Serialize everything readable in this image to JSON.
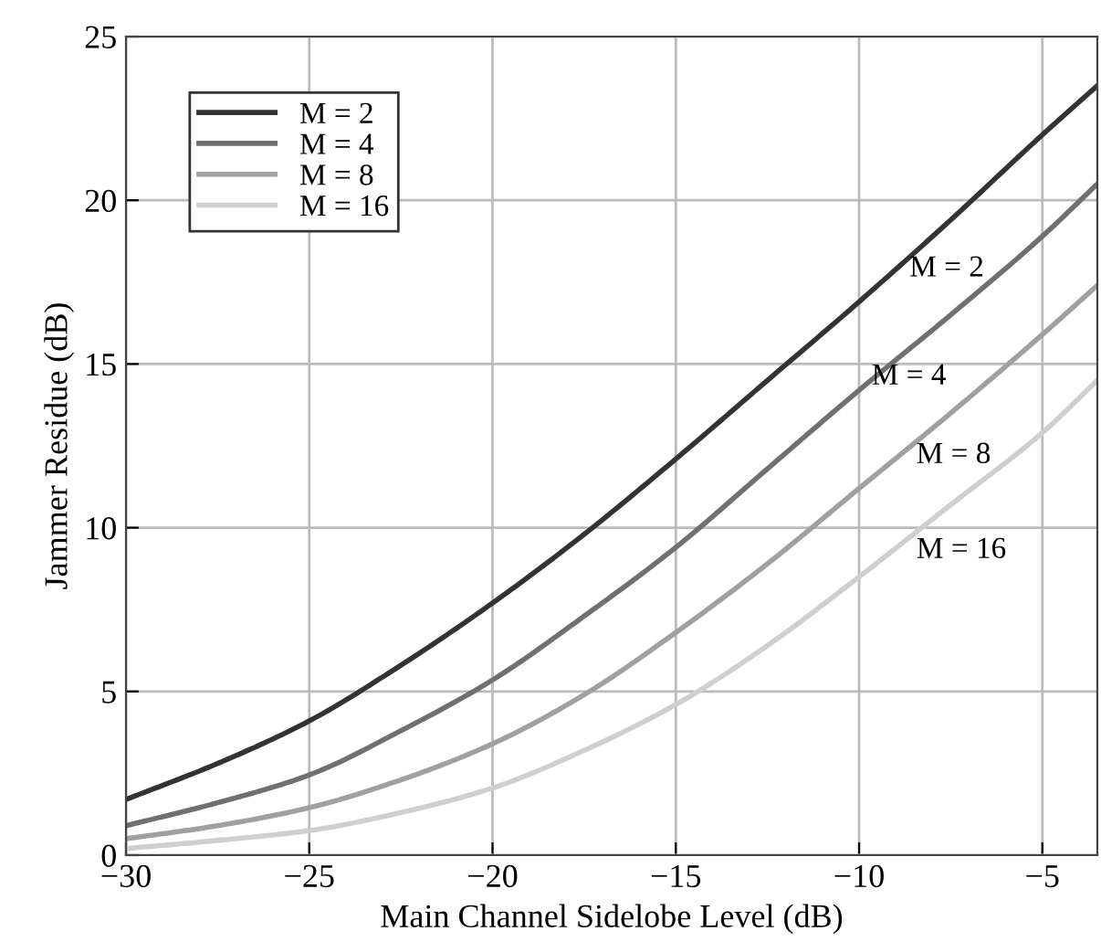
{
  "chart_data": {
    "type": "line",
    "xlabel": "Main Channel Sidelobe Level (dB)",
    "ylabel": "Jammer Residue (dB)",
    "x": [
      -30,
      -27.5,
      -25,
      -22.5,
      -20,
      -17.5,
      -15,
      -12.5,
      -10,
      -7.5,
      -5,
      -3.5
    ],
    "series": [
      {
        "name": "M = 2",
        "color": "#333333",
        "values": [
          1.7,
          2.8,
          4.1,
          5.8,
          7.7,
          9.8,
          12.1,
          14.5,
          16.9,
          19.4,
          22.0,
          23.5
        ]
      },
      {
        "name": "M = 4",
        "color": "#707070",
        "values": [
          0.9,
          1.6,
          2.45,
          3.8,
          5.35,
          7.3,
          9.4,
          11.8,
          14.2,
          16.5,
          18.9,
          20.5
        ]
      },
      {
        "name": "M = 8",
        "color": "#a0a0a0",
        "values": [
          0.5,
          0.9,
          1.45,
          2.3,
          3.4,
          4.9,
          6.8,
          8.9,
          11.2,
          13.5,
          15.9,
          17.4
        ]
      },
      {
        "name": "M = 16",
        "color": "#cfcfcf",
        "values": [
          0.2,
          0.45,
          0.75,
          1.3,
          2.05,
          3.2,
          4.6,
          6.4,
          8.5,
          10.7,
          12.9,
          14.5
        ]
      }
    ],
    "xlim": [
      -30,
      -3.5
    ],
    "ylim": [
      0,
      25
    ],
    "xticks": [
      {
        "value": -30,
        "label": "−30"
      },
      {
        "value": -25,
        "label": "−25"
      },
      {
        "value": -20,
        "label": "−20"
      },
      {
        "value": -15,
        "label": "−15"
      },
      {
        "value": -10,
        "label": "−10"
      },
      {
        "value": -5,
        "label": "−5"
      }
    ],
    "yticks": [
      0,
      5,
      10,
      15,
      20,
      25
    ],
    "annotations": [
      "M = 2",
      "M = 4",
      "M = 8",
      "M = 16"
    ],
    "grid": true,
    "legend": "top left",
    "marker": "none",
    "line_style": "solid"
  }
}
